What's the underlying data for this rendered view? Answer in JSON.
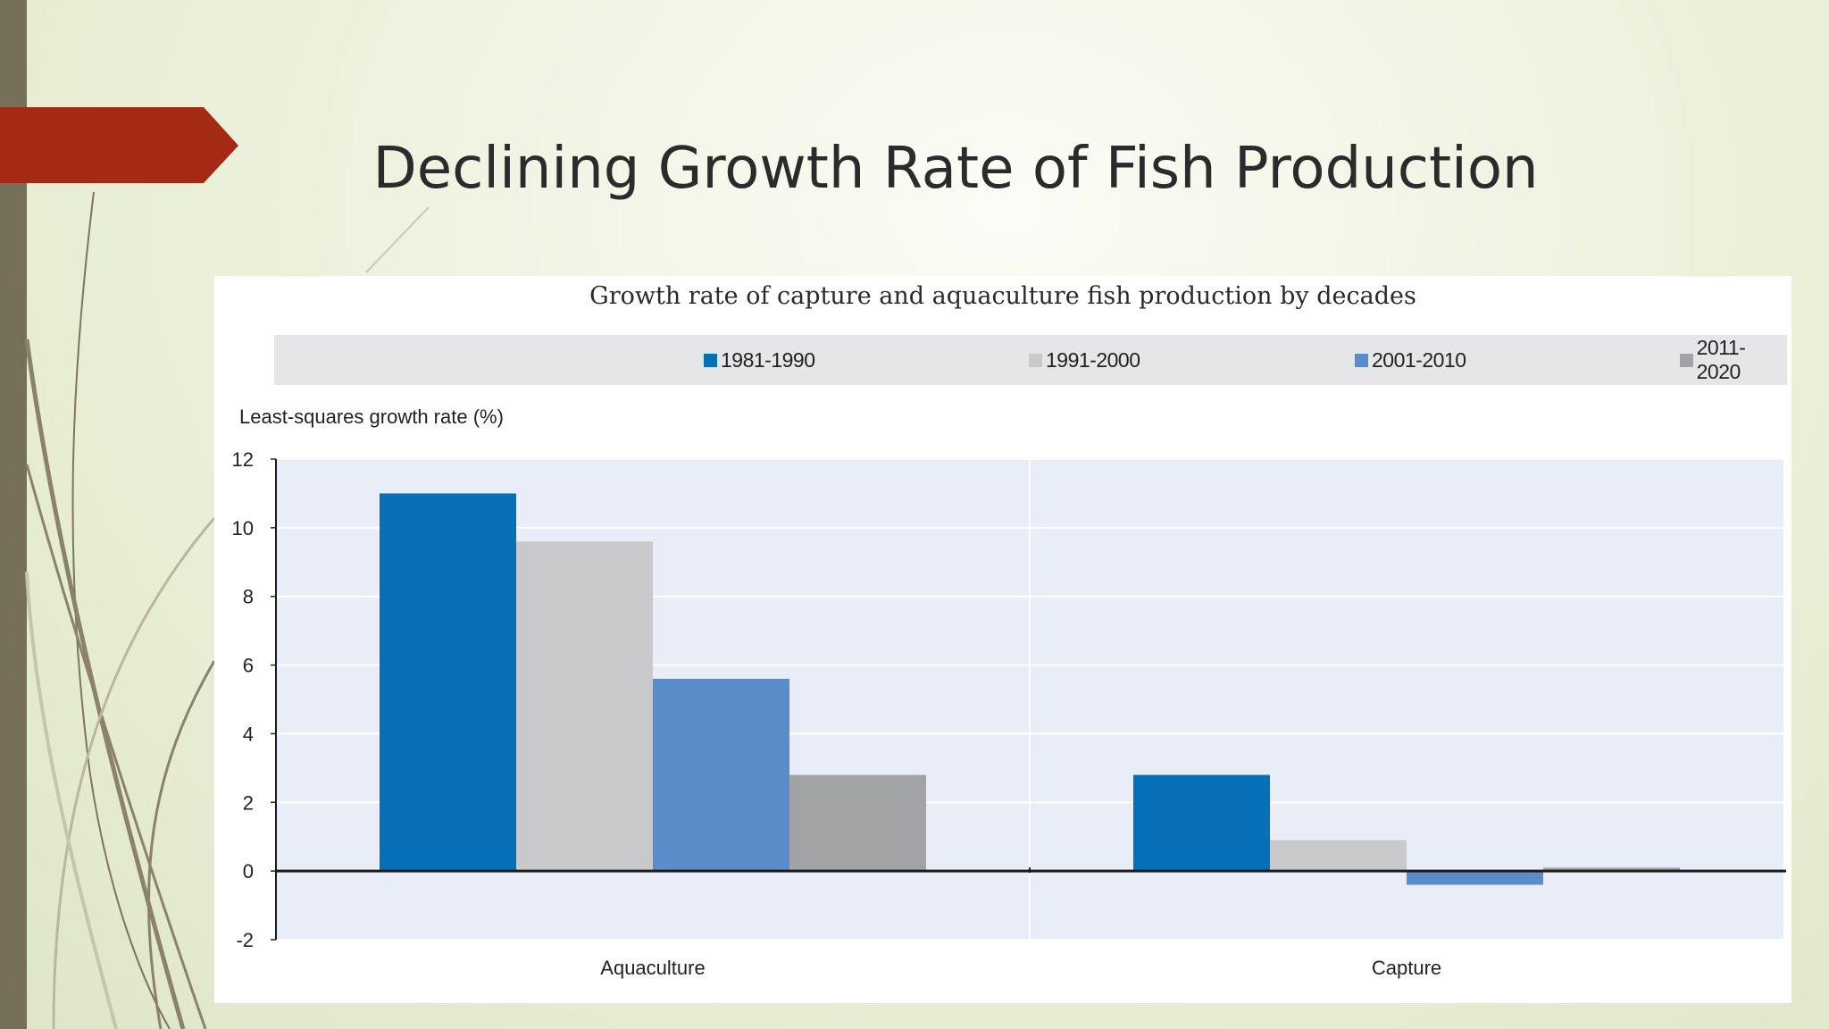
{
  "slide": {
    "title": "Declining Growth Rate of Fish Production"
  },
  "colors": {
    "accent_arrow": "#a52a14",
    "side_bar": "#76705a",
    "plot_bg": "#e9edf7"
  },
  "chart_data": {
    "type": "bar",
    "title": "Growth rate of capture and aquaculture fish production by decades",
    "ylabel": "Least-squares growth rate (%)",
    "xlabel": "",
    "categories": [
      "Aquaculture",
      "Capture"
    ],
    "series": [
      {
        "name": "1981-1990",
        "color": "#0570b8",
        "values": [
          11.0,
          2.8
        ]
      },
      {
        "name": "1991-2000",
        "color": "#c8c9cb",
        "values": [
          9.6,
          0.9
        ]
      },
      {
        "name": "2001-2010",
        "color": "#5b8cca",
        "values": [
          5.6,
          -0.4
        ]
      },
      {
        "name": "2011-2020",
        "color": "#a1a3a5",
        "values": [
          2.8,
          0.1
        ]
      }
    ],
    "ylim": [
      -2,
      12
    ],
    "yticks": [
      "-2",
      "0",
      "2",
      "4",
      "6",
      "8",
      "10",
      "12"
    ],
    "grid": true,
    "legend_position": "top"
  }
}
